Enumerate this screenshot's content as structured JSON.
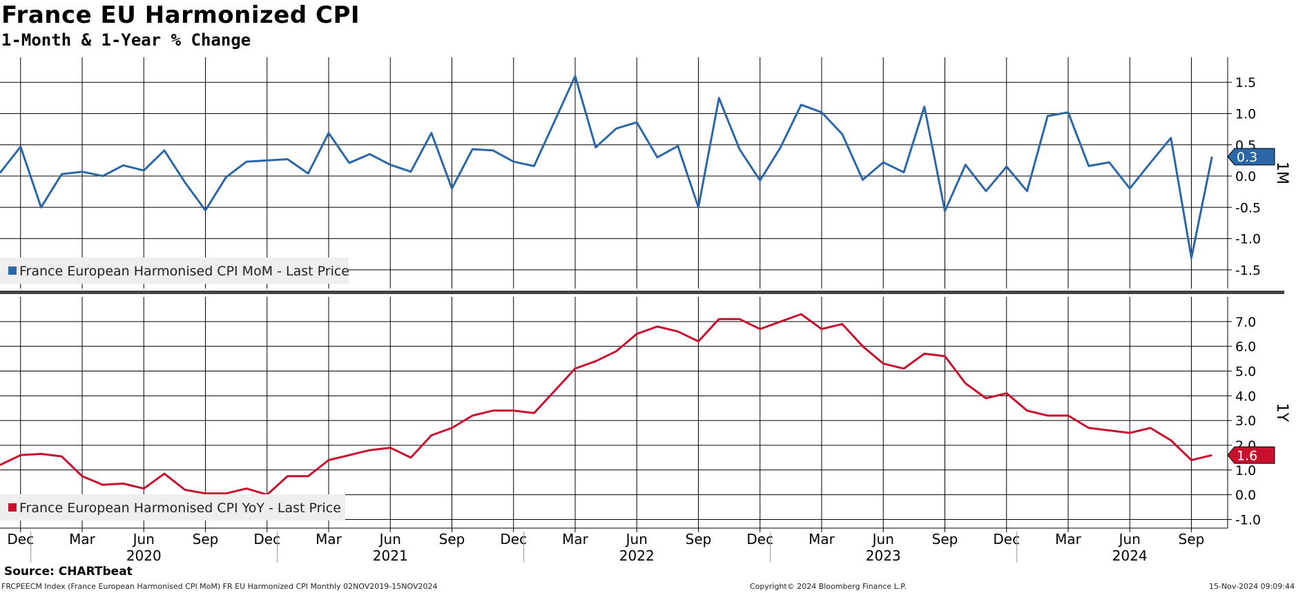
{
  "title": "France EU Harmonized CPI",
  "subtitle": "1-Month & 1-Year % Change",
  "source": "Source: CHARTbeat",
  "footer": {
    "left": "FRCPEECM Index (France European Harmonised CPI MoM) FR EU Harmonized CPI  Monthly 02NOV2019-15NOV2024",
    "center": "Copyright© 2024 Bloomberg Finance L.P.",
    "right": "15-Nov-2024 09:09:44"
  },
  "colors": {
    "mom": "#2a67a8",
    "yoy": "#c8102e",
    "grid": "#000000"
  },
  "chart_data": [
    {
      "type": "line",
      "panel_label": "1M",
      "legend": "France European Harmonised CPI MoM - Last Price",
      "last_value_label": "0.3",
      "ylim": [
        -1.8,
        1.9
      ],
      "yticks": [
        1.5,
        1.0,
        0.5,
        0.0,
        -0.5,
        -1.0,
        -1.5
      ],
      "ytick_labels": [
        "1.5",
        "1.0",
        "0.5",
        "0.0",
        "-0.5",
        "-1.0",
        "-1.5"
      ],
      "x": [
        "2019-11",
        "2019-12",
        "2020-01",
        "2020-02",
        "2020-03",
        "2020-04",
        "2020-05",
        "2020-06",
        "2020-07",
        "2020-08",
        "2020-09",
        "2020-10",
        "2020-11",
        "2020-12",
        "2021-01",
        "2021-02",
        "2021-03",
        "2021-04",
        "2021-05",
        "2021-06",
        "2021-07",
        "2021-08",
        "2021-09",
        "2021-10",
        "2021-11",
        "2021-12",
        "2022-01",
        "2022-02",
        "2022-03",
        "2022-04",
        "2022-05",
        "2022-06",
        "2022-07",
        "2022-08",
        "2022-09",
        "2022-10",
        "2022-11",
        "2022-12",
        "2023-01",
        "2023-02",
        "2023-03",
        "2023-04",
        "2023-05",
        "2023-06",
        "2023-07",
        "2023-08",
        "2023-09",
        "2023-10",
        "2023-11",
        "2023-12",
        "2024-01",
        "2024-02",
        "2024-03",
        "2024-04",
        "2024-05",
        "2024-06",
        "2024-07",
        "2024-08",
        "2024-09",
        "2024-10"
      ],
      "series": [
        {
          "name": "France European Harmonised CPI MoM",
          "values": [
            0.05,
            0.47,
            -0.5,
            0.03,
            0.07,
            0.0,
            0.17,
            0.09,
            0.41,
            -0.1,
            -0.55,
            -0.02,
            0.23,
            0.25,
            0.27,
            0.04,
            0.69,
            0.21,
            0.35,
            0.18,
            0.07,
            0.69,
            -0.2,
            0.43,
            0.41,
            0.23,
            0.16,
            0.88,
            1.6,
            0.46,
            0.76,
            0.86,
            0.3,
            0.48,
            -0.5,
            1.25,
            0.43,
            -0.07,
            0.46,
            1.14,
            1.02,
            0.67,
            -0.06,
            0.22,
            0.06,
            1.11,
            -0.56,
            0.18,
            -0.24,
            0.15,
            -0.24,
            0.96,
            1.02,
            0.16,
            0.22,
            -0.2,
            0.21,
            0.61,
            -1.31,
            0.31
          ]
        }
      ]
    },
    {
      "type": "line",
      "panel_label": "1Y",
      "legend": "France European Harmonised CPI YoY - Last Price",
      "last_value_label": "1.6",
      "ylim": [
        -1.35,
        8.0
      ],
      "yticks": [
        7.0,
        6.0,
        5.0,
        4.0,
        3.0,
        2.0,
        1.0,
        0.0,
        -1.0
      ],
      "ytick_labels": [
        "7.0",
        "6.0",
        "5.0",
        "4.0",
        "3.0",
        "2.0",
        "1.0",
        "0.0",
        "-1.0"
      ],
      "x": [
        "2019-11",
        "2019-12",
        "2020-01",
        "2020-02",
        "2020-03",
        "2020-04",
        "2020-05",
        "2020-06",
        "2020-07",
        "2020-08",
        "2020-09",
        "2020-10",
        "2020-11",
        "2020-12",
        "2021-01",
        "2021-02",
        "2021-03",
        "2021-04",
        "2021-05",
        "2021-06",
        "2021-07",
        "2021-08",
        "2021-09",
        "2021-10",
        "2021-11",
        "2021-12",
        "2022-01",
        "2022-02",
        "2022-03",
        "2022-04",
        "2022-05",
        "2022-06",
        "2022-07",
        "2022-08",
        "2022-09",
        "2022-10",
        "2022-11",
        "2022-12",
        "2023-01",
        "2023-02",
        "2023-03",
        "2023-04",
        "2023-05",
        "2023-06",
        "2023-07",
        "2023-08",
        "2023-09",
        "2023-10",
        "2023-11",
        "2023-12",
        "2024-01",
        "2024-02",
        "2024-03",
        "2024-04",
        "2024-05",
        "2024-06",
        "2024-07",
        "2024-08",
        "2024-09",
        "2024-10"
      ],
      "series": [
        {
          "name": "France European Harmonised CPI YoY",
          "values": [
            1.2,
            1.6,
            1.65,
            1.55,
            0.75,
            0.4,
            0.45,
            0.25,
            0.85,
            0.2,
            0.05,
            0.05,
            0.25,
            0.0,
            0.75,
            0.75,
            1.4,
            1.6,
            1.8,
            1.9,
            1.5,
            2.4,
            2.7,
            3.2,
            3.4,
            3.4,
            3.3,
            4.2,
            5.1,
            5.4,
            5.8,
            6.5,
            6.8,
            6.6,
            6.2,
            7.1,
            7.1,
            6.7,
            7.0,
            7.3,
            6.7,
            6.9,
            6.0,
            5.3,
            5.1,
            5.7,
            5.6,
            4.5,
            3.9,
            4.1,
            3.4,
            3.2,
            3.2,
            2.7,
            2.6,
            2.5,
            2.7,
            2.2,
            1.4,
            1.6
          ]
        }
      ]
    },
    {
      "type": "axis",
      "x_tick_labels": [
        {
          "month": "2019-12",
          "label": "Dec"
        },
        {
          "month": "2020-03",
          "label": "Mar"
        },
        {
          "month": "2020-06",
          "label": "Jun"
        },
        {
          "month": "2020-09",
          "label": "Sep"
        },
        {
          "month": "2020-12",
          "label": "Dec"
        },
        {
          "month": "2021-03",
          "label": "Mar"
        },
        {
          "month": "2021-06",
          "label": "Jun"
        },
        {
          "month": "2021-09",
          "label": "Sep"
        },
        {
          "month": "2021-12",
          "label": "Dec"
        },
        {
          "month": "2022-03",
          "label": "Mar"
        },
        {
          "month": "2022-06",
          "label": "Jun"
        },
        {
          "month": "2022-09",
          "label": "Sep"
        },
        {
          "month": "2022-12",
          "label": "Dec"
        },
        {
          "month": "2023-03",
          "label": "Mar"
        },
        {
          "month": "2023-06",
          "label": "Jun"
        },
        {
          "month": "2023-09",
          "label": "Sep"
        },
        {
          "month": "2023-12",
          "label": "Dec"
        },
        {
          "month": "2024-03",
          "label": "Mar"
        },
        {
          "month": "2024-06",
          "label": "Jun"
        },
        {
          "month": "2024-09",
          "label": "Sep"
        }
      ],
      "year_labels": [
        {
          "year": "2020",
          "center_month": "2020-06"
        },
        {
          "year": "2021",
          "center_month": "2021-06"
        },
        {
          "year": "2022",
          "center_month": "2022-06"
        },
        {
          "year": "2023",
          "center_month": "2023-06"
        },
        {
          "year": "2024",
          "center_month": "2024-06"
        }
      ]
    }
  ]
}
